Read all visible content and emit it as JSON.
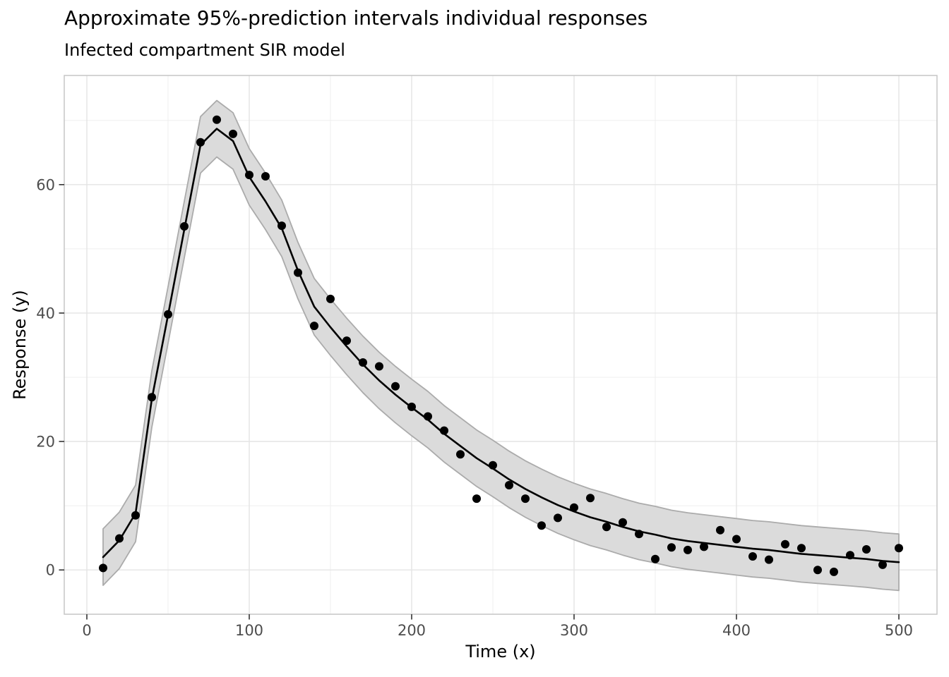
{
  "chart_data": {
    "type": "line",
    "title": "Approximate 95%-prediction intervals individual responses",
    "subtitle": "Infected compartment SIR model",
    "xlabel": "Time (x)",
    "ylabel": "Response (y)",
    "xlim": [
      -13.9,
      523.5
    ],
    "ylim": [
      -6.9,
      77.0
    ],
    "x_major_ticks": [
      0,
      100,
      200,
      300,
      400,
      500
    ],
    "x_minor_gridlines": [
      50,
      150,
      250,
      350,
      450
    ],
    "y_major_ticks": [
      0,
      20,
      40,
      60
    ],
    "y_minor_gridlines": [
      10,
      30,
      50,
      70
    ],
    "grid": "major-and-minor",
    "legend": "none",
    "x": [
      10,
      20,
      30,
      40,
      50,
      60,
      70,
      80,
      90,
      100,
      110,
      120,
      130,
      140,
      150,
      160,
      170,
      180,
      190,
      200,
      210,
      220,
      230,
      240,
      250,
      260,
      270,
      280,
      290,
      300,
      310,
      320,
      330,
      340,
      350,
      360,
      370,
      380,
      390,
      400,
      410,
      420,
      430,
      440,
      450,
      460,
      470,
      480,
      490,
      500
    ],
    "series": [
      {
        "name": "prediction-interval-95",
        "type": "ribbon",
        "lo": [
          -2.4,
          0.2,
          4.4,
          22.2,
          35.3,
          48.6,
          61.8,
          64.3,
          62.4,
          56.8,
          53.0,
          48.8,
          42.2,
          36.6,
          33.4,
          30.4,
          27.6,
          25.1,
          22.9,
          20.9,
          19.0,
          16.8,
          14.9,
          13.0,
          11.4,
          9.7,
          8.2,
          6.9,
          5.7,
          4.7,
          3.8,
          3.1,
          2.3,
          1.6,
          1.1,
          0.5,
          0.1,
          -0.2,
          -0.5,
          -0.8,
          -1.1,
          -1.3,
          -1.6,
          -1.9,
          -2.1,
          -2.3,
          -2.5,
          -2.7,
          -3.0,
          -3.2
        ],
        "hi": [
          6.4,
          9.0,
          13.2,
          31.0,
          44.1,
          57.4,
          70.6,
          73.1,
          71.2,
          65.6,
          61.8,
          57.6,
          51.0,
          45.4,
          42.2,
          39.2,
          36.4,
          33.9,
          31.7,
          29.7,
          27.8,
          25.6,
          23.7,
          21.8,
          20.2,
          18.5,
          17.0,
          15.7,
          14.5,
          13.5,
          12.6,
          11.9,
          11.1,
          10.4,
          9.9,
          9.3,
          8.9,
          8.6,
          8.3,
          8.0,
          7.7,
          7.5,
          7.2,
          6.9,
          6.7,
          6.5,
          6.3,
          6.1,
          5.8,
          5.6
        ]
      },
      {
        "name": "mean-prediction",
        "type": "line",
        "values": [
          2.0,
          4.6,
          8.8,
          26.6,
          39.7,
          53.0,
          66.2,
          68.7,
          66.8,
          61.2,
          57.4,
          53.2,
          46.6,
          41.0,
          37.8,
          34.8,
          32.0,
          29.5,
          27.3,
          25.3,
          23.4,
          21.2,
          19.3,
          17.4,
          15.8,
          14.1,
          12.6,
          11.3,
          10.1,
          9.1,
          8.2,
          7.5,
          6.7,
          6.0,
          5.5,
          4.9,
          4.5,
          4.2,
          3.9,
          3.6,
          3.3,
          3.1,
          2.8,
          2.5,
          2.3,
          2.1,
          1.9,
          1.7,
          1.4,
          1.2
        ]
      },
      {
        "name": "simulated-observations",
        "type": "scatter",
        "values": [
          0.3,
          4.9,
          8.5,
          26.9,
          39.8,
          53.5,
          66.6,
          70.1,
          67.9,
          61.5,
          61.3,
          53.6,
          46.3,
          38.0,
          42.2,
          35.7,
          32.3,
          31.7,
          28.6,
          25.4,
          23.9,
          21.7,
          18.0,
          11.1,
          16.3,
          13.2,
          11.1,
          6.9,
          8.1,
          9.7,
          11.2,
          6.7,
          7.4,
          5.6,
          1.7,
          3.5,
          3.1,
          3.6,
          6.2,
          4.8,
          2.1,
          1.6,
          4.0,
          3.4,
          0.0,
          -0.3,
          2.3,
          3.2,
          0.8,
          3.4
        ]
      }
    ],
    "colors": {
      "mean_line": "#000000",
      "points": "#000000",
      "ribbon_fill": "#dbdbdb",
      "ribbon_edge": "#ababab",
      "grid_major": "#e4e4e4",
      "grid_minor": "#efefef",
      "panel_border": "#c6c6c6",
      "panel_background": "#ffffff",
      "axis_text": "#4d4d4d",
      "axis_title": "#000000",
      "tick_mark": "#333333"
    }
  }
}
